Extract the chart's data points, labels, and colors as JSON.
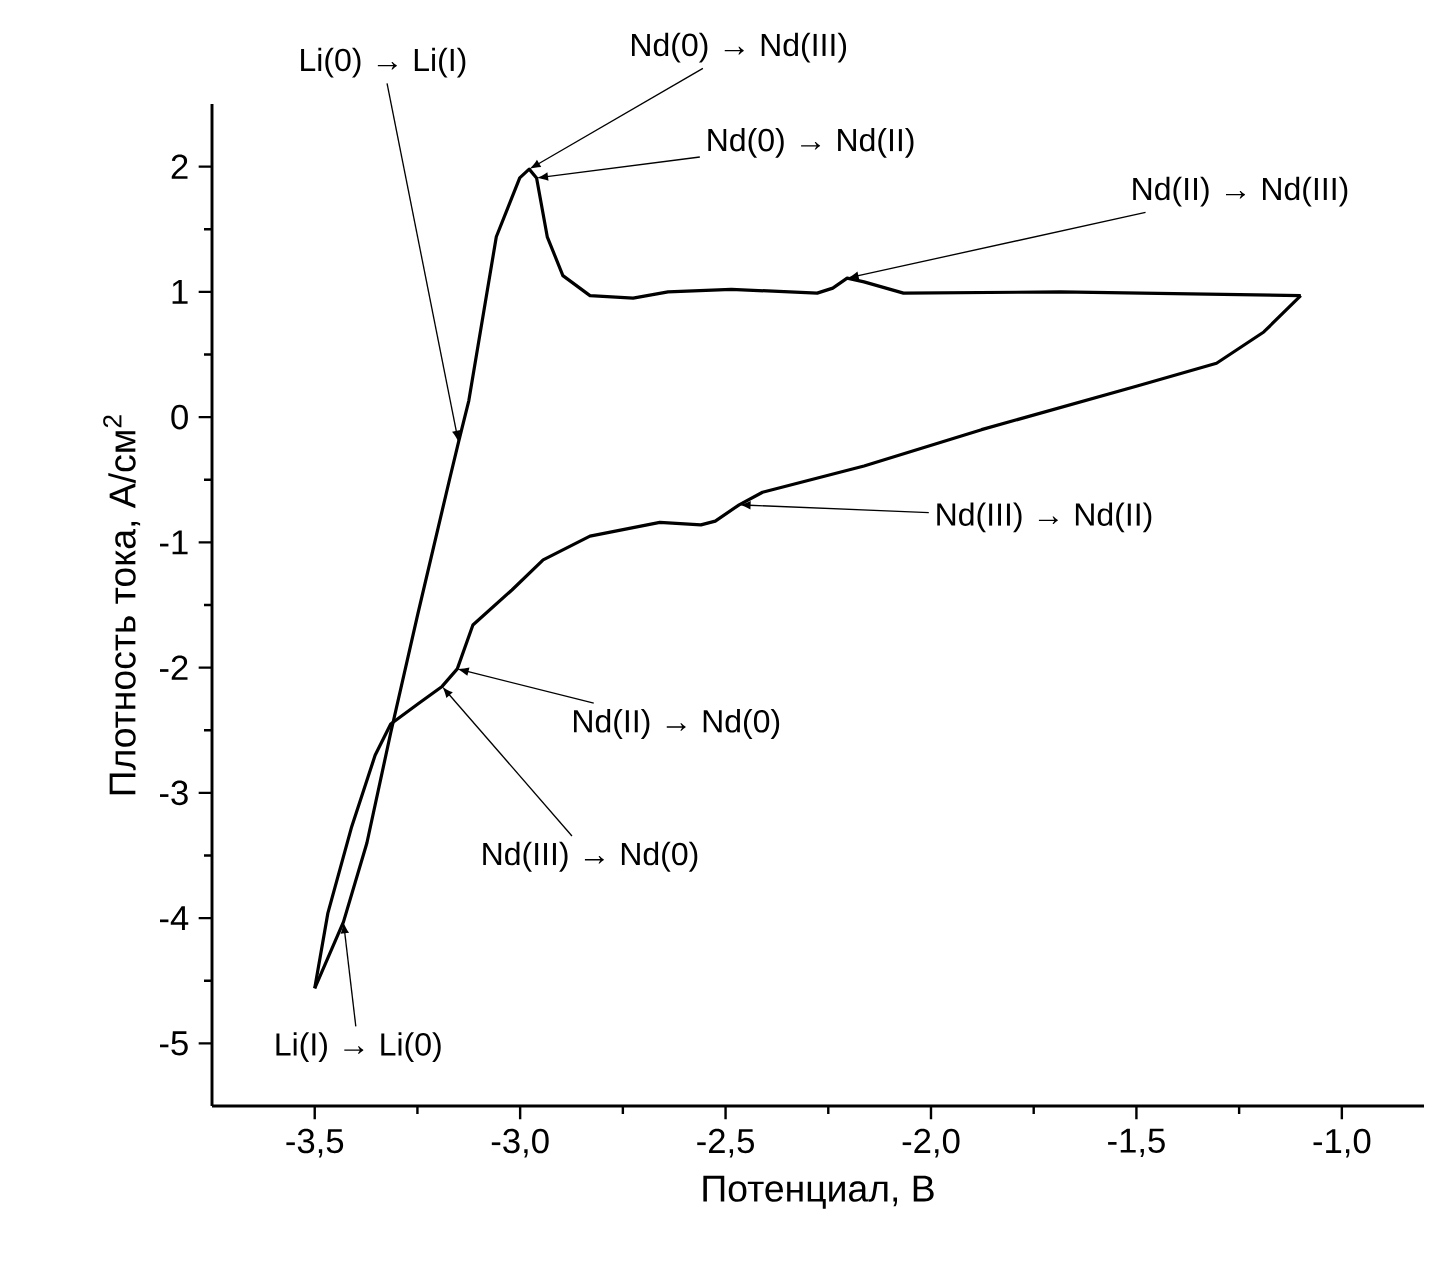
{
  "chart_data": {
    "type": "line",
    "xlabel": "Потенциал, В",
    "ylabel": "Плотность тока, А/см$^{2}$",
    "xlim": [
      -3.75,
      -0.8
    ],
    "ylim": [
      -5.5,
      2.5
    ],
    "xticks": [
      {
        "value": -3.5,
        "label": "-3,5"
      },
      {
        "value": -3.0,
        "label": "-3,0"
      },
      {
        "value": -2.5,
        "label": "-2,5"
      },
      {
        "value": -2.0,
        "label": "-2,0"
      },
      {
        "value": -1.5,
        "label": "-1,5"
      },
      {
        "value": -1.0,
        "label": "-1,0"
      }
    ],
    "yticks": [
      -5,
      -4,
      -3,
      -2,
      -1,
      0,
      1,
      2
    ],
    "series": [
      {
        "color": "#000000",
        "x": [
          -1.1,
          -1.19,
          -1.305,
          -1.496,
          -1.877,
          -2.163,
          -2.41,
          -2.467,
          -2.525,
          -2.56,
          -2.66,
          -2.83,
          -2.944,
          -3.02,
          -3.115,
          -3.153,
          -3.19,
          -3.249,
          -3.315,
          -3.353,
          -3.41,
          -3.468,
          -3.5
        ],
        "values": [
          0.97,
          0.68,
          0.43,
          0.25,
          -0.1,
          -0.39,
          -0.6,
          -0.7,
          -0.83,
          -0.86,
          -0.84,
          -0.95,
          -1.14,
          -1.38,
          -1.66,
          -2.01,
          -2.15,
          -2.29,
          -2.45,
          -2.7,
          -3.27,
          -3.96,
          -4.56
        ]
      },
      {
        "color": "#000000",
        "x": [
          -3.5,
          -3.43,
          -3.373,
          -3.315,
          -3.249,
          -3.172,
          -3.15,
          -3.125,
          -3.058,
          -3.001,
          -2.978,
          -2.96,
          -2.934,
          -2.896,
          -2.83,
          -2.725,
          -2.64,
          -2.486,
          -2.277,
          -2.239,
          -2.204,
          -2.163,
          -2.067,
          -1.686,
          -1.1
        ],
        "values": [
          -4.56,
          -4.03,
          -3.4,
          -2.52,
          -1.57,
          -0.5,
          -0.2,
          0.13,
          1.44,
          1.91,
          1.98,
          1.91,
          1.44,
          1.13,
          0.97,
          0.95,
          1.0,
          1.02,
          0.99,
          1.03,
          1.11,
          1.08,
          0.99,
          1.0,
          0.97
        ]
      }
    ],
    "annotations": [
      {
        "text": "Li(0) → Li(I)",
        "x": -3.15,
        "y": -0.2
      },
      {
        "text": "Nd(0) → Nd(III)",
        "x": -2.978,
        "y": 1.98
      },
      {
        "text": "Nd(0) → Nd(II)",
        "x": -2.96,
        "y": 1.91
      },
      {
        "text": "Nd(II) → Nd(III)",
        "x": -2.204,
        "y": 1.11
      },
      {
        "text": "Nd(III) → Nd(II)",
        "x": -2.467,
        "y": -0.7
      },
      {
        "text": "Nd(II) → Nd(0)",
        "x": -3.153,
        "y": -2.01
      },
      {
        "text": "Nd(III) → Nd(0)",
        "x": -3.19,
        "y": -2.15
      },
      {
        "text": "Li(I) → Li(0)",
        "x": -3.43,
        "y": -4.03
      }
    ]
  }
}
